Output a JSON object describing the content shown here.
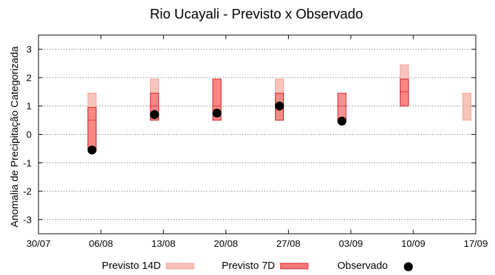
{
  "chart_data": {
    "type": "range-bar",
    "title": "Rio Ucayali - Previsto x Observado",
    "ylabel": "Anomalia de Precipitação Categorizada",
    "xlabel": "",
    "ylim": [
      -3.5,
      3.5
    ],
    "yticks": [
      -3,
      -2,
      -1,
      0,
      1,
      2,
      3
    ],
    "xlim": [
      "2023-07-30",
      "2023-09-17"
    ],
    "xticks": [
      {
        "date": "2023-07-30",
        "label": "30/07"
      },
      {
        "date": "2023-08-06",
        "label": "06/08"
      },
      {
        "date": "2023-08-13",
        "label": "13/08"
      },
      {
        "date": "2023-08-20",
        "label": "20/08"
      },
      {
        "date": "2023-08-27",
        "label": "27/08"
      },
      {
        "date": "2023-09-03",
        "label": "03/09"
      },
      {
        "date": "2023-09-10",
        "label": "10/09"
      },
      {
        "date": "2023-09-17",
        "label": "17/09"
      }
    ],
    "grid": true,
    "legend_position": "bottom",
    "colors": {
      "previsto_14d_fill": "#f8c0b8",
      "previsto_14d_stroke": "#f4a090",
      "previsto_7d_fill": "#f87878",
      "previsto_7d_stroke": "#d02020",
      "observado": "#000000"
    },
    "series": [
      {
        "name": "Previsto 14D",
        "kind": "range",
        "points": [
          {
            "date": "2023-08-05",
            "low": -0.5,
            "high": 1.45,
            "mid": 0.5
          },
          {
            "date": "2023-08-12",
            "low": 0.5,
            "high": 1.95,
            "mid": 1.0
          },
          {
            "date": "2023-08-19",
            "low": 0.5,
            "high": 1.95,
            "mid": 1.45
          },
          {
            "date": "2023-08-26",
            "low": 0.5,
            "high": 1.95,
            "mid": 1.45
          },
          {
            "date": "2023-09-09",
            "low": 1.0,
            "high": 2.45,
            "mid": 1.95
          },
          {
            "date": "2023-09-16",
            "low": 0.5,
            "high": 1.45,
            "mid": 1.0
          }
        ]
      },
      {
        "name": "Previsto 7D",
        "kind": "range",
        "points": [
          {
            "date": "2023-08-05",
            "low": -0.55,
            "high": 0.95,
            "mid": 0.5
          },
          {
            "date": "2023-08-12",
            "low": 0.5,
            "high": 1.45,
            "mid": 1.0
          },
          {
            "date": "2023-08-19",
            "low": 0.5,
            "high": 1.95,
            "mid": 1.0
          },
          {
            "date": "2023-08-26",
            "low": 0.5,
            "high": 1.45,
            "mid": 1.0
          },
          {
            "date": "2023-09-02",
            "low": 0.5,
            "high": 1.45,
            "mid": 1.0
          },
          {
            "date": "2023-09-09",
            "low": 1.0,
            "high": 1.95,
            "mid": 1.5
          }
        ]
      },
      {
        "name": "Observado",
        "kind": "point",
        "points": [
          {
            "date": "2023-08-05",
            "value": -0.55
          },
          {
            "date": "2023-08-12",
            "value": 0.7
          },
          {
            "date": "2023-08-19",
            "value": 0.75
          },
          {
            "date": "2023-08-26",
            "value": 1.0
          },
          {
            "date": "2023-09-02",
            "value": 0.47
          }
        ]
      }
    ]
  }
}
